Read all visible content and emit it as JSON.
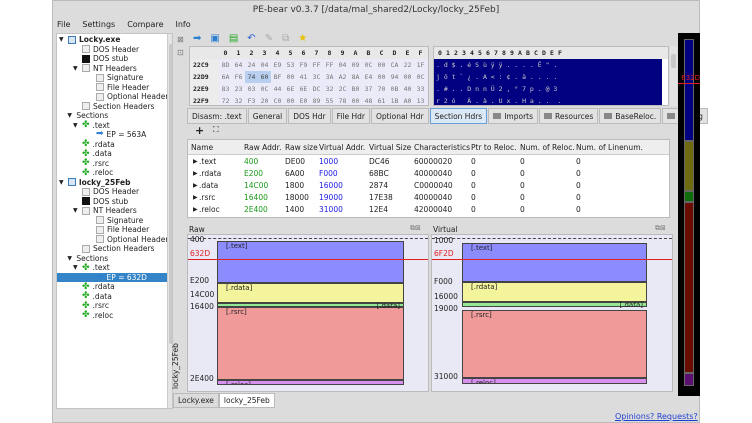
{
  "window": {
    "title": "PE-bear v0.3.7 [/data/mal_shared2/Locky/locky_25Feb]"
  },
  "menu": [
    "File",
    "Settings",
    "Compare",
    "Info"
  ],
  "tree": [
    {
      "label": "Locky.exe",
      "level": 0,
      "icon": "exe-icon",
      "bold": true
    },
    {
      "label": "DOS Header",
      "level": 1,
      "icon": "doc-icon"
    },
    {
      "label": "DOS stub",
      "level": 1,
      "icon": "stub-icon"
    },
    {
      "label": "NT Headers",
      "level": 1,
      "icon": "doc-icon",
      "expand": true
    },
    {
      "label": "Signature",
      "level": 2,
      "icon": "doc-icon"
    },
    {
      "label": "File Header",
      "level": 2,
      "icon": "doc-icon"
    },
    {
      "label": "Optional Header",
      "level": 2,
      "icon": "doc-icon"
    },
    {
      "label": "Section Headers",
      "level": 1,
      "icon": "doc-icon"
    },
    {
      "label": "Sections",
      "level": 0.6,
      "icon": "",
      "expand": true
    },
    {
      "label": ".text",
      "level": 1,
      "icon": "puzzle-icon",
      "expand": true
    },
    {
      "label": "EP = 563A",
      "level": 2,
      "icon": "arrow-icon"
    },
    {
      "label": ".rdata",
      "level": 1,
      "icon": "puzzle-icon"
    },
    {
      "label": ".data",
      "level": 1,
      "icon": "puzzle-icon"
    },
    {
      "label": ".rsrc",
      "level": 1,
      "icon": "puzzle-icon"
    },
    {
      "label": ".reloc",
      "level": 1,
      "icon": "puzzle-icon"
    },
    {
      "label": "locky_25Feb",
      "level": 0,
      "icon": "exe-icon",
      "bold": true
    },
    {
      "label": "DOS Header",
      "level": 1,
      "icon": "doc-icon"
    },
    {
      "label": "DOS stub",
      "level": 1,
      "icon": "stub-icon"
    },
    {
      "label": "NT Headers",
      "level": 1,
      "icon": "doc-icon",
      "expand": true
    },
    {
      "label": "Signature",
      "level": 2,
      "icon": "doc-icon"
    },
    {
      "label": "File Header",
      "level": 2,
      "icon": "doc-icon"
    },
    {
      "label": "Optional Header",
      "level": 2,
      "icon": "doc-icon"
    },
    {
      "label": "Section Headers",
      "level": 1,
      "icon": "doc-icon"
    },
    {
      "label": "Sections",
      "level": 0.6,
      "icon": "",
      "expand": true
    },
    {
      "label": ".text",
      "level": 1,
      "icon": "puzzle-icon",
      "expand": true
    },
    {
      "label": "EP = 632D",
      "level": 2,
      "icon": "arrow-icon",
      "selected": true
    },
    {
      "label": ".rdata",
      "level": 1,
      "icon": "puzzle-icon"
    },
    {
      "label": ".data",
      "level": 1,
      "icon": "puzzle-icon"
    },
    {
      "label": ".rsrc",
      "level": 1,
      "icon": "puzzle-icon"
    },
    {
      "label": ".reloc",
      "level": 1,
      "icon": "puzzle-icon"
    }
  ],
  "hex": {
    "columns": [
      "0",
      "1",
      "2",
      "3",
      "4",
      "5",
      "6",
      "7",
      "8",
      "9",
      "A",
      "B",
      "C",
      "D",
      "E",
      "F"
    ],
    "rows": [
      {
        "addr": "22C9",
        "bytes": [
          "8D",
          "64",
          "24",
          "04",
          "E9",
          "53",
          "F9",
          "FF",
          "FF",
          "04",
          "09",
          "0C",
          "00",
          "CA",
          "22",
          "1F"
        ],
        "ascii": ". d $ . é S ù ÿ ÿ . . . . Ê \" ."
      },
      {
        "addr": "22D9",
        "bytes": [
          "6A",
          "F6",
          "74",
          "60",
          "BF",
          "00",
          "41",
          "3C",
          "3A",
          "A2",
          "8A",
          "E4",
          "00",
          "94",
          "00",
          "0C"
        ],
        "ascii": "j ö t ` ¿ . A < : ¢ . ä . . . ."
      },
      {
        "addr": "22E9",
        "bytes": [
          "83",
          "23",
          "03",
          "0C",
          "44",
          "6E",
          "6E",
          "DC",
          "32",
          "2C",
          "B0",
          "37",
          "70",
          "0B",
          "40",
          "33"
        ],
        "ascii": ". # . . D n n Ü 2 , ° 7 p . @ 3"
      },
      {
        "addr": "22F9",
        "bytes": [
          "72",
          "32",
          "F3",
          "20",
          "C0",
          "00",
          "E0",
          "89",
          "55",
          "78",
          "00",
          "48",
          "61",
          "1B",
          "A0",
          "13"
        ],
        "ascii": "r 2 ó   À . à . U x . H a . .  ."
      },
      {
        "addr": "2309",
        "bytes": [
          "01",
          "8D",
          "30",
          "50",
          "25",
          "FF",
          "08",
          "5C",
          "1E",
          "06",
          "E2",
          "04",
          "07",
          "81",
          "5B",
          "15"
        ],
        "ascii": ". . 0 P % ÿ . \\ . . â . . . [ ."
      }
    ]
  },
  "tabs": [
    {
      "label": "Disasm: .text"
    },
    {
      "label": "General"
    },
    {
      "label": "DOS Hdr"
    },
    {
      "label": "File Hdr"
    },
    {
      "label": "Optional Hdr"
    },
    {
      "label": "Section Hdrs",
      "active": true
    },
    {
      "label": "Imports",
      "folder": true
    },
    {
      "label": "Resources",
      "folder": true
    },
    {
      "label": "BaseReloc.",
      "folder": true
    },
    {
      "label": "Debug",
      "folder": true
    }
  ],
  "table": {
    "headers": [
      "Name",
      "Raw Addr.",
      "Raw size",
      "Virtual Addr.",
      "Virtual Size",
      "Characteristics",
      "Ptr to Reloc.",
      "Num. of Reloc.",
      "Num. of Linenum."
    ],
    "rows": [
      [
        ".text",
        "400",
        "DE00",
        "1000",
        "DC46",
        "60000020",
        "0",
        "0",
        "0"
      ],
      [
        ".rdata",
        "E200",
        "6A00",
        "F000",
        "68BC",
        "40000040",
        "0",
        "0",
        "0"
      ],
      [
        ".data",
        "14C00",
        "1800",
        "16000",
        "2874",
        "C0000040",
        "0",
        "0",
        "0"
      ],
      [
        ".rsrc",
        "16400",
        "18000",
        "19000",
        "17E38",
        "40000040",
        "0",
        "0",
        "0"
      ],
      [
        ".reloc",
        "2E400",
        "1400",
        "31000",
        "12E4",
        "42000040",
        "0",
        "0",
        "0"
      ]
    ]
  },
  "raw_panel": {
    "title": "Raw",
    "side_label": "locky_25Feb",
    "ep": "632D",
    "labels": [
      "400",
      "E200",
      "14C00",
      "16400",
      "2E400"
    ],
    "sections": [
      ".text",
      ".rdata",
      ".data",
      ".rsrc",
      ".reloc"
    ]
  },
  "virtual_panel": {
    "title": "Virtual",
    "ep": "6F2D",
    "labels": [
      "1000",
      "F000",
      "16000",
      "19000",
      "31000"
    ],
    "sections": [
      ".text",
      ".rdata",
      ".data",
      ".rsrc",
      ".reloc"
    ]
  },
  "strip": {
    "ep": "632D"
  },
  "colors": {
    "text": "#8c8cff",
    "rdata": "#f4f49c",
    "data": "#94e894",
    "rsrc": "#f09a9a",
    "reloc": "#d890f0",
    "ep_line": "#e02020",
    "hex_sel": "#000080"
  },
  "bottom_tabs": [
    "Locky.exe",
    "locky_25Feb"
  ],
  "status": {
    "link": "Opinions? Requests?"
  }
}
